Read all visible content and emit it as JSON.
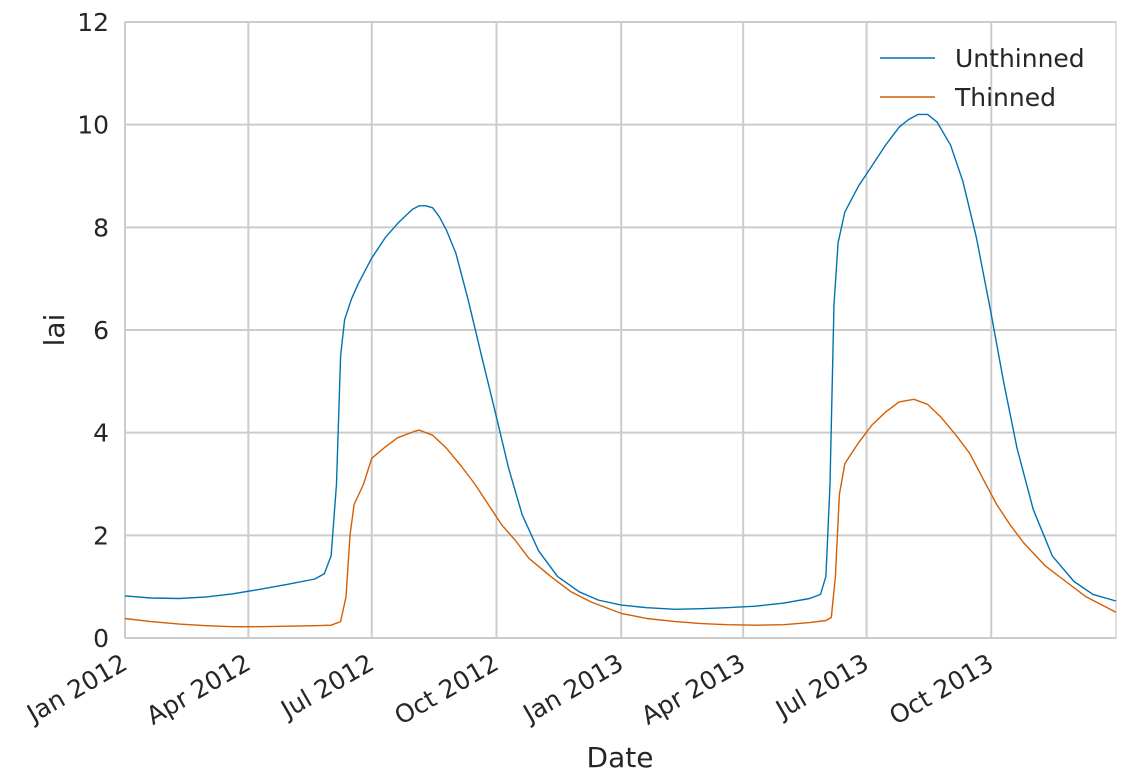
{
  "chart_data": {
    "type": "line",
    "title": "",
    "xlabel": "Date",
    "ylabel": "lai",
    "ylim": [
      0,
      12
    ],
    "xlim": [
      "2012-01-01",
      "2014-01-01"
    ],
    "yticks": [
      0,
      2,
      4,
      6,
      8,
      10,
      12
    ],
    "xticks": [
      {
        "date": "2012-01-01",
        "label": "Jan 2012"
      },
      {
        "date": "2012-04-01",
        "label": "Apr 2012"
      },
      {
        "date": "2012-07-01",
        "label": "Jul 2012"
      },
      {
        "date": "2012-10-01",
        "label": "Oct 2012"
      },
      {
        "date": "2013-01-01",
        "label": "Jan 2013"
      },
      {
        "date": "2013-04-01",
        "label": "Apr 2013"
      },
      {
        "date": "2013-07-01",
        "label": "Jul 2013"
      },
      {
        "date": "2013-10-01",
        "label": "Oct 2013"
      }
    ],
    "grid": true,
    "legend_position": "top-right",
    "series": [
      {
        "name": "Unthinned",
        "color": "#0072b2",
        "points": [
          [
            "2012-01-01",
            0.82
          ],
          [
            "2012-01-20",
            0.78
          ],
          [
            "2012-02-10",
            0.77
          ],
          [
            "2012-03-01",
            0.8
          ],
          [
            "2012-03-20",
            0.86
          ],
          [
            "2012-04-10",
            0.95
          ],
          [
            "2012-05-01",
            1.05
          ],
          [
            "2012-05-20",
            1.15
          ],
          [
            "2012-05-27",
            1.25
          ],
          [
            "2012-06-01",
            1.6
          ],
          [
            "2012-06-05",
            3.0
          ],
          [
            "2012-06-08",
            5.5
          ],
          [
            "2012-06-11",
            6.2
          ],
          [
            "2012-06-16",
            6.6
          ],
          [
            "2012-06-21",
            6.9
          ],
          [
            "2012-07-01",
            7.4
          ],
          [
            "2012-07-11",
            7.8
          ],
          [
            "2012-07-21",
            8.1
          ],
          [
            "2012-07-31",
            8.35
          ],
          [
            "2012-08-05",
            8.42
          ],
          [
            "2012-08-10",
            8.42
          ],
          [
            "2012-08-15",
            8.38
          ],
          [
            "2012-08-20",
            8.2
          ],
          [
            "2012-08-25",
            7.95
          ],
          [
            "2012-09-01",
            7.5
          ],
          [
            "2012-09-10",
            6.6
          ],
          [
            "2012-09-20",
            5.5
          ],
          [
            "2012-10-01",
            4.3
          ],
          [
            "2012-10-10",
            3.3
          ],
          [
            "2012-10-20",
            2.4
          ],
          [
            "2012-11-01",
            1.7
          ],
          [
            "2012-11-15",
            1.2
          ],
          [
            "2012-12-01",
            0.9
          ],
          [
            "2012-12-15",
            0.74
          ],
          [
            "2013-01-01",
            0.64
          ],
          [
            "2013-01-20",
            0.59
          ],
          [
            "2013-02-10",
            0.56
          ],
          [
            "2013-03-01",
            0.57
          ],
          [
            "2013-03-20",
            0.59
          ],
          [
            "2013-04-10",
            0.62
          ],
          [
            "2013-05-01",
            0.68
          ],
          [
            "2013-05-20",
            0.77
          ],
          [
            "2013-05-28",
            0.85
          ],
          [
            "2013-06-01",
            1.2
          ],
          [
            "2013-06-04",
            3.0
          ],
          [
            "2013-06-07",
            6.5
          ],
          [
            "2013-06-10",
            7.7
          ],
          [
            "2013-06-15",
            8.3
          ],
          [
            "2013-06-25",
            8.8
          ],
          [
            "2013-07-05",
            9.2
          ],
          [
            "2013-07-15",
            9.6
          ],
          [
            "2013-07-25",
            9.95
          ],
          [
            "2013-08-01",
            10.1
          ],
          [
            "2013-08-08",
            10.2
          ],
          [
            "2013-08-15",
            10.2
          ],
          [
            "2013-08-22",
            10.05
          ],
          [
            "2013-09-01",
            9.6
          ],
          [
            "2013-09-10",
            8.9
          ],
          [
            "2013-09-20",
            7.8
          ],
          [
            "2013-10-01",
            6.3
          ],
          [
            "2013-10-10",
            5.0
          ],
          [
            "2013-10-20",
            3.7
          ],
          [
            "2013-11-01",
            2.5
          ],
          [
            "2013-11-15",
            1.6
          ],
          [
            "2013-12-01",
            1.1
          ],
          [
            "2013-12-15",
            0.85
          ],
          [
            "2014-01-01",
            0.72
          ]
        ]
      },
      {
        "name": "Thinned",
        "color": "#d55e00",
        "points": [
          [
            "2012-01-01",
            0.38
          ],
          [
            "2012-01-20",
            0.32
          ],
          [
            "2012-02-10",
            0.27
          ],
          [
            "2012-03-01",
            0.24
          ],
          [
            "2012-03-20",
            0.22
          ],
          [
            "2012-04-10",
            0.22
          ],
          [
            "2012-05-01",
            0.23
          ],
          [
            "2012-05-20",
            0.24
          ],
          [
            "2012-06-01",
            0.25
          ],
          [
            "2012-06-08",
            0.32
          ],
          [
            "2012-06-12",
            0.8
          ],
          [
            "2012-06-15",
            2.0
          ],
          [
            "2012-06-18",
            2.6
          ],
          [
            "2012-06-25",
            3.0
          ],
          [
            "2012-07-01",
            3.5
          ],
          [
            "2012-07-10",
            3.7
          ],
          [
            "2012-07-20",
            3.9
          ],
          [
            "2012-08-01",
            4.02
          ],
          [
            "2012-08-05",
            4.05
          ],
          [
            "2012-08-15",
            3.95
          ],
          [
            "2012-08-25",
            3.7
          ],
          [
            "2012-09-05",
            3.35
          ],
          [
            "2012-09-15",
            3.0
          ],
          [
            "2012-09-25",
            2.6
          ],
          [
            "2012-10-05",
            2.2
          ],
          [
            "2012-10-15",
            1.9
          ],
          [
            "2012-10-25",
            1.55
          ],
          [
            "2012-11-10",
            1.2
          ],
          [
            "2012-11-25",
            0.9
          ],
          [
            "2012-12-10",
            0.7
          ],
          [
            "2013-01-01",
            0.48
          ],
          [
            "2013-01-20",
            0.38
          ],
          [
            "2013-02-10",
            0.32
          ],
          [
            "2013-03-01",
            0.28
          ],
          [
            "2013-03-20",
            0.26
          ],
          [
            "2013-04-10",
            0.25
          ],
          [
            "2013-05-01",
            0.26
          ],
          [
            "2013-05-20",
            0.3
          ],
          [
            "2013-06-01",
            0.34
          ],
          [
            "2013-06-05",
            0.4
          ],
          [
            "2013-06-08",
            1.2
          ],
          [
            "2013-06-11",
            2.8
          ],
          [
            "2013-06-15",
            3.4
          ],
          [
            "2013-06-25",
            3.8
          ],
          [
            "2013-07-05",
            4.15
          ],
          [
            "2013-07-15",
            4.4
          ],
          [
            "2013-07-25",
            4.6
          ],
          [
            "2013-08-05",
            4.65
          ],
          [
            "2013-08-15",
            4.55
          ],
          [
            "2013-08-25",
            4.3
          ],
          [
            "2013-09-05",
            3.95
          ],
          [
            "2013-09-15",
            3.6
          ],
          [
            "2013-09-25",
            3.1
          ],
          [
            "2013-10-05",
            2.6
          ],
          [
            "2013-10-15",
            2.2
          ],
          [
            "2013-10-25",
            1.85
          ],
          [
            "2013-11-10",
            1.4
          ],
          [
            "2013-11-25",
            1.1
          ],
          [
            "2013-12-10",
            0.8
          ],
          [
            "2014-01-01",
            0.5
          ]
        ]
      }
    ]
  }
}
